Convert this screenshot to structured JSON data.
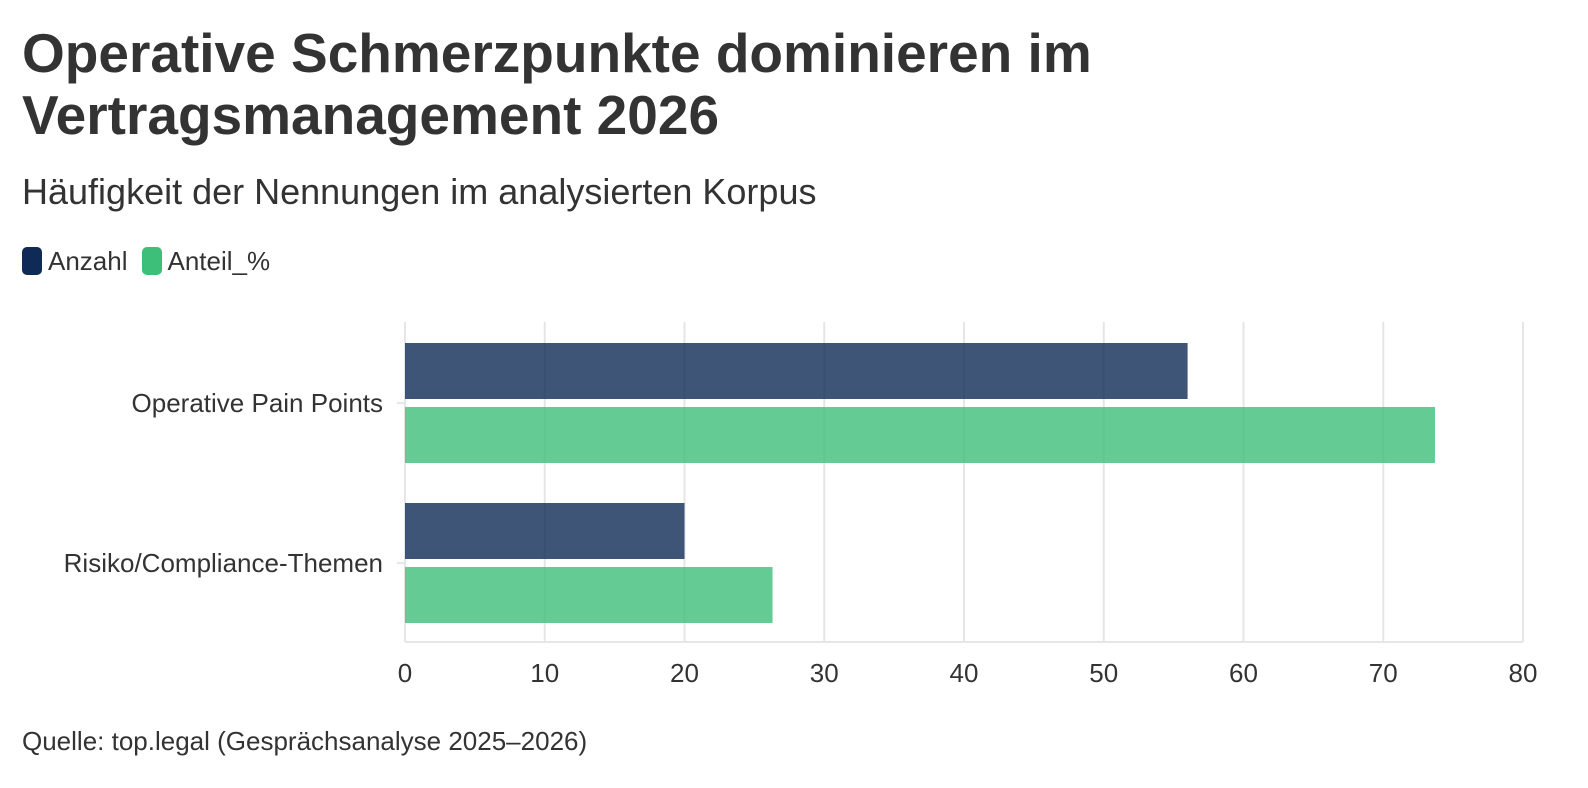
{
  "title": "Operative Schmerzpunkte dominieren im Vertragsmanagement 2026",
  "subtitle": "Häufigkeit der Nennungen im analysierten Korpus",
  "source": "Quelle: top.legal (Gesprächsanalyse 2025–2026)",
  "colors": {
    "anzahl": "#0f2a56",
    "anteil": "#3dbe79",
    "grid": "#e6e6e6",
    "text": "#333333"
  },
  "chart_data": {
    "type": "bar",
    "orientation": "horizontal",
    "categories": [
      "Operative Pain Points",
      "Risiko/Compliance-Themen"
    ],
    "series": [
      {
        "name": "Anzahl",
        "values": [
          56,
          20
        ]
      },
      {
        "name": "Anteil_%",
        "values": [
          73.7,
          26.3
        ]
      }
    ],
    "xlim": [
      0,
      80
    ],
    "xticks": [
      0,
      10,
      20,
      30,
      40,
      50,
      60,
      70,
      80
    ],
    "grid": true,
    "legend": "top-left"
  }
}
